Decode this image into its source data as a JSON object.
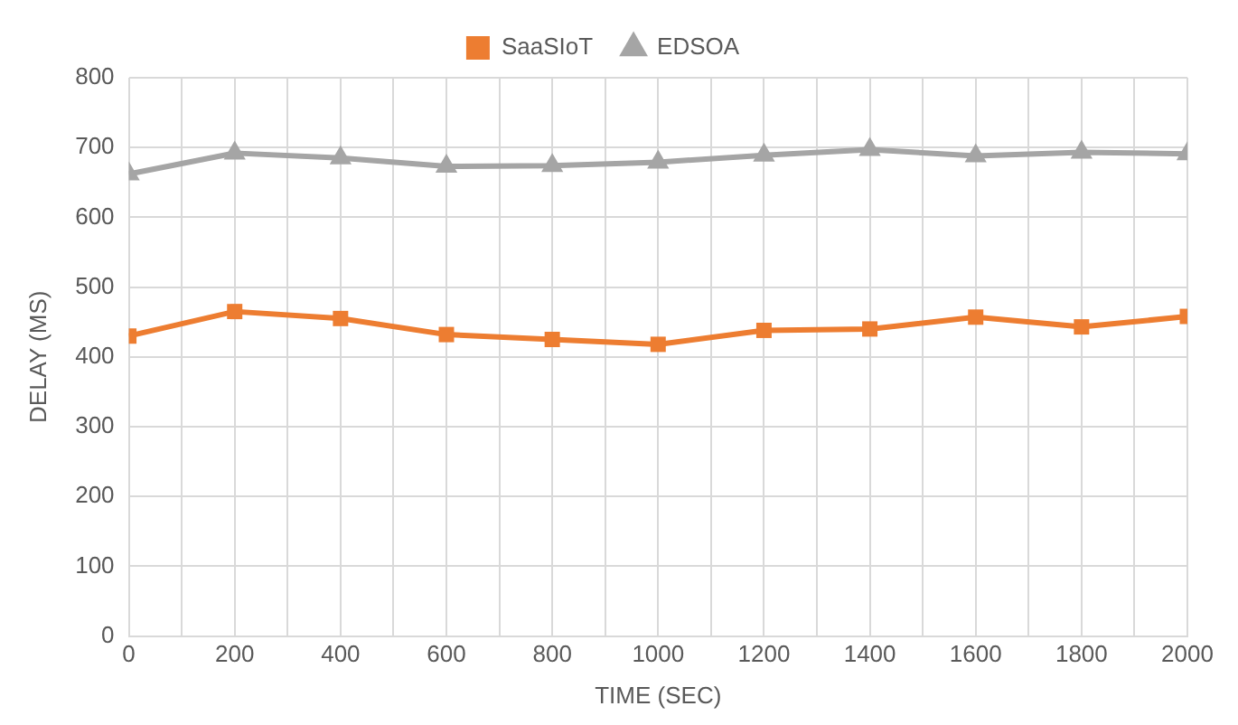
{
  "chart_data": {
    "type": "line",
    "xlabel": "TIME (SEC)",
    "ylabel": "DELAY (MS)",
    "x": [
      0,
      200,
      400,
      600,
      800,
      1000,
      1200,
      1400,
      1600,
      1800,
      2000
    ],
    "series": [
      {
        "name": "SaaSIoT",
        "color": "#ed7d31",
        "marker": "square",
        "values": [
          430,
          465,
          455,
          432,
          425,
          418,
          438,
          440,
          457,
          443,
          458
        ]
      },
      {
        "name": "EDSOA",
        "color": "#a5a5a5",
        "marker": "triangle",
        "values": [
          662,
          692,
          685,
          673,
          674,
          679,
          689,
          697,
          688,
          693,
          691
        ]
      }
    ],
    "xlim": [
      0,
      2000
    ],
    "xticks": [
      0,
      {
        "value": 100,
        "label": null
      },
      200,
      {
        "value": 300,
        "label": null
      },
      400,
      {
        "value": 500,
        "label": null
      },
      600,
      {
        "value": 700,
        "label": null
      },
      800,
      {
        "value": 900,
        "label": null
      },
      1000,
      {
        "value": 1100,
        "label": null
      },
      1200,
      {
        "value": 1300,
        "label": null
      },
      1400,
      {
        "value": 1500,
        "label": null
      },
      1600,
      {
        "value": 1700,
        "label": null
      },
      1800,
      {
        "value": 1900,
        "label": null
      },
      2000
    ],
    "ylim": [
      0,
      800
    ],
    "yticks": [
      0,
      100,
      200,
      300,
      400,
      500,
      600,
      700,
      800
    ],
    "grid": true,
    "legend": "top",
    "line_style": "solid"
  }
}
